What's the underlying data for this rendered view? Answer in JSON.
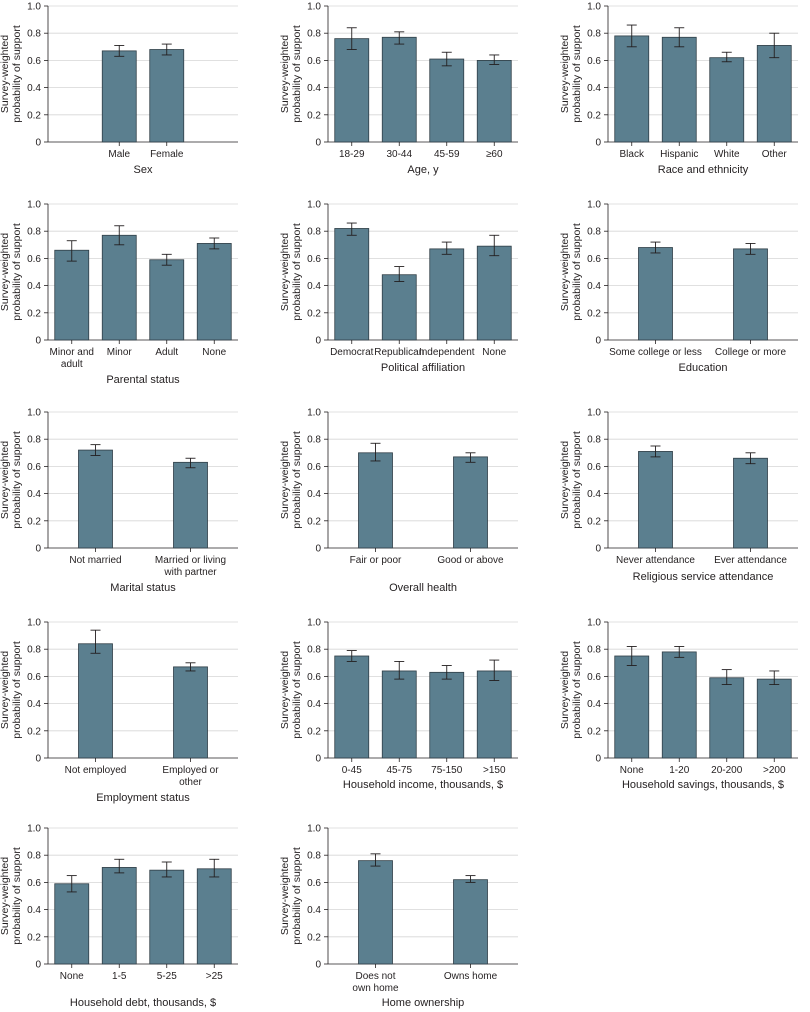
{
  "figure": {
    "y_axis_label": [
      "Survey-weighted",
      "probability of support"
    ],
    "y_ticks": [
      "0",
      "0.2",
      "0.4",
      "0.6",
      "0.8",
      "1.0"
    ],
    "bar_color": "#5b7f8f"
  },
  "chart_data": [
    {
      "type": "bar",
      "title": "Sex",
      "xlabel": "Sex",
      "ylabel": "Survey-weighted probability of support",
      "ylim": [
        0,
        1.0
      ],
      "slots": 4,
      "categories": [
        [
          "Male"
        ],
        [
          "Female"
        ]
      ],
      "values": [
        0.67,
        0.68
      ],
      "ci_low": [
        0.63,
        0.64
      ],
      "ci_high": [
        0.71,
        0.72
      ]
    },
    {
      "type": "bar",
      "title": "Age, y",
      "xlabel": "Age, y",
      "ylabel": "Survey-weighted probability of support",
      "ylim": [
        0,
        1.0
      ],
      "slots": 4,
      "categories": [
        [
          "18-29"
        ],
        [
          "30-44"
        ],
        [
          "45-59"
        ],
        [
          "≥60"
        ]
      ],
      "values": [
        0.76,
        0.77,
        0.61,
        0.6
      ],
      "ci_low": [
        0.68,
        0.72,
        0.56,
        0.57
      ],
      "ci_high": [
        0.84,
        0.81,
        0.66,
        0.64
      ]
    },
    {
      "type": "bar",
      "title": "Race and ethnicity",
      "xlabel": "Race and ethnicity",
      "ylabel": "Survey-weighted probability of support",
      "ylim": [
        0,
        1.0
      ],
      "slots": 4,
      "categories": [
        [
          "Black"
        ],
        [
          "Hispanic"
        ],
        [
          "White"
        ],
        [
          "Other"
        ]
      ],
      "values": [
        0.78,
        0.77,
        0.62,
        0.71
      ],
      "ci_low": [
        0.7,
        0.7,
        0.59,
        0.62
      ],
      "ci_high": [
        0.86,
        0.84,
        0.66,
        0.8
      ]
    },
    {
      "type": "bar",
      "title": "Parental status",
      "xlabel": "Parental status",
      "ylabel": "Survey-weighted probability of support",
      "ylim": [
        0,
        1.0
      ],
      "slots": 4,
      "categories": [
        [
          "Minor and",
          "adult"
        ],
        [
          "Minor"
        ],
        [
          "Adult"
        ],
        [
          "None"
        ]
      ],
      "values": [
        0.66,
        0.77,
        0.59,
        0.71
      ],
      "ci_low": [
        0.58,
        0.7,
        0.55,
        0.67
      ],
      "ci_high": [
        0.73,
        0.84,
        0.63,
        0.75
      ]
    },
    {
      "type": "bar",
      "title": "Political affiliation",
      "xlabel": "Political affiliation",
      "ylabel": "Survey-weighted probability of support",
      "ylim": [
        0,
        1.0
      ],
      "slots": 4,
      "categories": [
        [
          "Democrat"
        ],
        [
          "Republican"
        ],
        [
          "Independent"
        ],
        [
          "None"
        ]
      ],
      "values": [
        0.82,
        0.48,
        0.67,
        0.69
      ],
      "ci_low": [
        0.77,
        0.43,
        0.63,
        0.62
      ],
      "ci_high": [
        0.86,
        0.54,
        0.72,
        0.77
      ]
    },
    {
      "type": "bar",
      "title": "Education",
      "xlabel": "Education",
      "ylabel": "Survey-weighted probability of support",
      "ylim": [
        0,
        1.0
      ],
      "slots": 2,
      "categories": [
        [
          "Some college or less"
        ],
        [
          "College or more"
        ]
      ],
      "values": [
        0.68,
        0.67
      ],
      "ci_low": [
        0.64,
        0.63
      ],
      "ci_high": [
        0.72,
        0.71
      ]
    },
    {
      "type": "bar",
      "title": "Marital status",
      "xlabel": "Marital status",
      "ylabel": "Survey-weighted probability of support",
      "ylim": [
        0,
        1.0
      ],
      "slots": 2,
      "categories": [
        [
          "Not married"
        ],
        [
          "Married or living",
          "with partner"
        ]
      ],
      "values": [
        0.72,
        0.63
      ],
      "ci_low": [
        0.68,
        0.59
      ],
      "ci_high": [
        0.76,
        0.66
      ]
    },
    {
      "type": "bar",
      "title": "Overall health",
      "xlabel": "Overall health",
      "ylabel": "Survey-weighted probability of support",
      "ylim": [
        0,
        1.0
      ],
      "slots": 2,
      "categories": [
        [
          "Fair or poor"
        ],
        [
          "Good or above"
        ]
      ],
      "values": [
        0.7,
        0.67
      ],
      "ci_low": [
        0.64,
        0.63
      ],
      "ci_high": [
        0.77,
        0.7
      ]
    },
    {
      "type": "bar",
      "title": "Religious service attendance",
      "xlabel": "Religious service attendance",
      "ylabel": "Survey-weighted probability of support",
      "ylim": [
        0,
        1.0
      ],
      "slots": 2,
      "categories": [
        [
          "Never attendance"
        ],
        [
          "Ever attendance"
        ]
      ],
      "values": [
        0.71,
        0.66
      ],
      "ci_low": [
        0.67,
        0.62
      ],
      "ci_high": [
        0.75,
        0.7
      ]
    },
    {
      "type": "bar",
      "title": "Employment status",
      "xlabel": "Employment status",
      "ylabel": "Survey-weighted probability of support",
      "ylim": [
        0,
        1.0
      ],
      "slots": 2,
      "categories": [
        [
          "Not employed"
        ],
        [
          "Employed or",
          "other"
        ]
      ],
      "values": [
        0.84,
        0.67
      ],
      "ci_low": [
        0.77,
        0.64
      ],
      "ci_high": [
        0.94,
        0.7
      ]
    },
    {
      "type": "bar",
      "title": "Household income, thousands, $",
      "xlabel": "Household income, thousands, $",
      "ylabel": "Survey-weighted probability of support",
      "ylim": [
        0,
        1.0
      ],
      "slots": 4,
      "categories": [
        [
          "0-45"
        ],
        [
          "45-75"
        ],
        [
          "75-150"
        ],
        [
          ">150"
        ]
      ],
      "values": [
        0.75,
        0.64,
        0.63,
        0.64
      ],
      "ci_low": [
        0.71,
        0.58,
        0.58,
        0.57
      ],
      "ci_high": [
        0.79,
        0.71,
        0.68,
        0.72
      ]
    },
    {
      "type": "bar",
      "title": "Household savings, thousands, $",
      "xlabel": "Household savings, thousands, $",
      "ylabel": "Survey-weighted probability of support",
      "ylim": [
        0,
        1.0
      ],
      "slots": 4,
      "categories": [
        [
          "None"
        ],
        [
          "1-20"
        ],
        [
          "20-200"
        ],
        [
          ">200"
        ]
      ],
      "values": [
        0.75,
        0.78,
        0.59,
        0.58
      ],
      "ci_low": [
        0.68,
        0.74,
        0.54,
        0.54
      ],
      "ci_high": [
        0.82,
        0.82,
        0.65,
        0.64
      ]
    },
    {
      "type": "bar",
      "title": "Household debt, thousands, $",
      "xlabel": "Household debt, thousands, $",
      "ylabel": "Survey-weighted probability of support",
      "ylim": [
        0,
        1.0
      ],
      "slots": 4,
      "categories": [
        [
          "None"
        ],
        [
          "1-5"
        ],
        [
          "5-25"
        ],
        [
          ">25"
        ]
      ],
      "values": [
        0.59,
        0.71,
        0.69,
        0.7
      ],
      "ci_low": [
        0.53,
        0.67,
        0.64,
        0.64
      ],
      "ci_high": [
        0.65,
        0.77,
        0.75,
        0.77
      ]
    },
    {
      "type": "bar",
      "title": "Home ownership",
      "xlabel": "Home ownership",
      "ylabel": "Survey-weighted probability of support",
      "ylim": [
        0,
        1.0
      ],
      "slots": 2,
      "categories": [
        [
          "Does not",
          "own home"
        ],
        [
          "Owns home"
        ]
      ],
      "values": [
        0.76,
        0.62
      ],
      "ci_low": [
        0.72,
        0.6
      ],
      "ci_high": [
        0.81,
        0.65
      ]
    }
  ]
}
